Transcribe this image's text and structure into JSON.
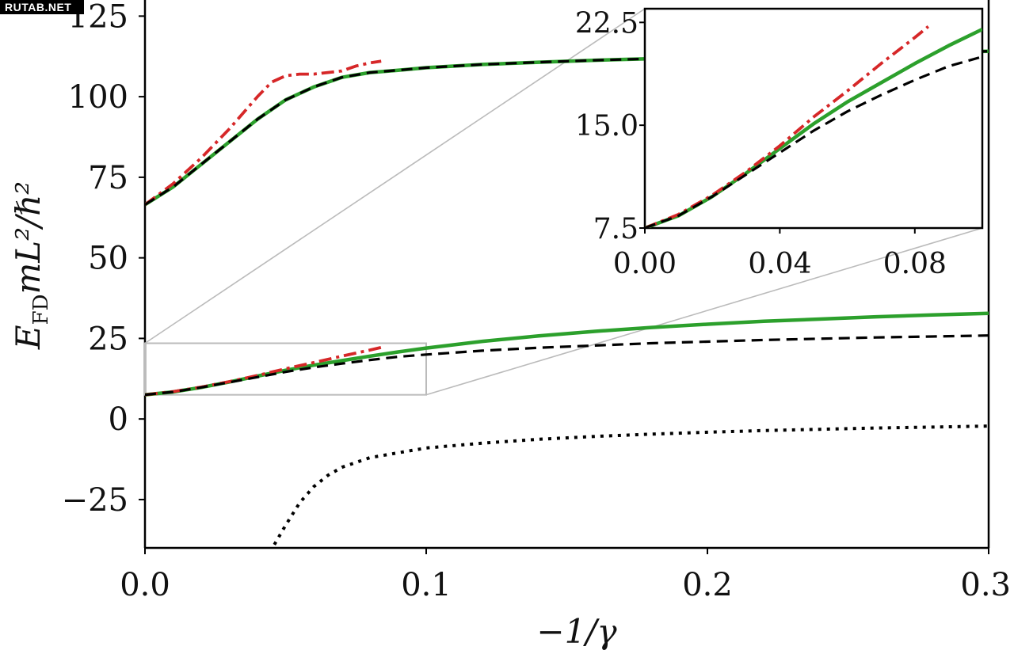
{
  "watermark": "RUTAB.NET",
  "chart_data": {
    "type": "line",
    "xlabel": "−1/γ",
    "ylabel": {
      "base": "E",
      "sub": "FD",
      "rest": "mL²/ℏ²"
    },
    "xlim": [
      0.0,
      0.3
    ],
    "ylim": [
      -40,
      130
    ],
    "x_ticks": [
      0.0,
      0.1,
      0.2,
      0.3
    ],
    "x_tick_labels": [
      "0.0",
      "0.1",
      "0.2",
      "0.3"
    ],
    "y_ticks": [
      -25,
      0,
      25,
      50,
      75,
      100,
      125
    ],
    "y_tick_labels": [
      "−25",
      "0",
      "25",
      "50",
      "75",
      "100",
      "125"
    ],
    "grid": false,
    "colors": {
      "green": "#2ca02c",
      "black": "#000000",
      "red": "#d62728",
      "zoom": "#bbbbbb"
    },
    "series": [
      {
        "style": "green-solid",
        "x": [
          0.0,
          0.01,
          0.02,
          0.03,
          0.04,
          0.05,
          0.06,
          0.07,
          0.08,
          0.09,
          0.1,
          0.12,
          0.14,
          0.16,
          0.18,
          0.2,
          0.22,
          0.24,
          0.26,
          0.28,
          0.3
        ],
        "y": [
          66.5,
          72,
          79,
          86,
          93,
          99,
          103,
          106,
          107.5,
          108.2,
          109,
          110,
          110.7,
          111.3,
          111.8,
          112.3,
          112.7,
          113.1,
          113.5,
          113.8,
          114.1
        ]
      },
      {
        "style": "black-dashed",
        "x": [
          0.0,
          0.01,
          0.02,
          0.03,
          0.04,
          0.05,
          0.06,
          0.07,
          0.08,
          0.09,
          0.1,
          0.12,
          0.14,
          0.16,
          0.18,
          0.2,
          0.22,
          0.24,
          0.26,
          0.28,
          0.3
        ],
        "y": [
          66.5,
          72,
          79,
          86,
          93,
          99,
          103,
          106,
          107.5,
          108.2,
          109,
          110,
          110.7,
          111.3,
          111.8,
          112.3,
          112.7,
          113.1,
          113.5,
          113.8,
          114.1
        ]
      },
      {
        "style": "red-dashdot",
        "x": [
          0.0,
          0.01,
          0.02,
          0.03,
          0.04,
          0.045,
          0.05,
          0.055,
          0.06,
          0.065,
          0.07,
          0.075,
          0.08,
          0.084
        ],
        "y": [
          66.5,
          73,
          81,
          90,
          100,
          104.5,
          106.5,
          107,
          107,
          107.5,
          108,
          109.5,
          110.5,
          111
        ]
      },
      {
        "style": "green-solid",
        "x": [
          0.0,
          0.01,
          0.02,
          0.03,
          0.04,
          0.05,
          0.06,
          0.07,
          0.08,
          0.09,
          0.1,
          0.12,
          0.14,
          0.16,
          0.18,
          0.2,
          0.22,
          0.24,
          0.26,
          0.28,
          0.3
        ],
        "y": [
          7.5,
          8.4,
          9.8,
          11.5,
          13.3,
          15.1,
          16.7,
          18.1,
          19.5,
          20.8,
          22,
          24.1,
          25.8,
          27.2,
          28.4,
          29.4,
          30.3,
          31,
          31.7,
          32.3,
          32.8
        ]
      },
      {
        "style": "black-dashed",
        "x": [
          0.0,
          0.01,
          0.02,
          0.03,
          0.04,
          0.05,
          0.06,
          0.07,
          0.08,
          0.09,
          0.1,
          0.12,
          0.14,
          0.16,
          0.18,
          0.2,
          0.22,
          0.24,
          0.26,
          0.28,
          0.3
        ],
        "y": [
          7.5,
          8.4,
          9.8,
          11.4,
          13,
          14.6,
          16,
          17.2,
          18.3,
          19.3,
          20,
          21.2,
          22.1,
          22.8,
          23.5,
          24,
          24.5,
          24.9,
          25.3,
          25.6,
          25.9
        ]
      },
      {
        "style": "red-dashdot",
        "x": [
          0.0,
          0.01,
          0.02,
          0.03,
          0.04,
          0.05,
          0.06,
          0.07,
          0.08,
          0.084
        ],
        "y": [
          7.5,
          8.5,
          9.9,
          11.6,
          13.5,
          15.6,
          17.5,
          19.5,
          21.4,
          22.2
        ]
      },
      {
        "style": "black-dotted",
        "x": [
          0.046,
          0.05,
          0.055,
          0.06,
          0.065,
          0.07,
          0.08,
          0.09,
          0.1,
          0.12,
          0.14,
          0.16,
          0.18,
          0.2,
          0.22,
          0.24,
          0.26,
          0.28,
          0.3
        ],
        "y": [
          -39,
          -33,
          -26,
          -21,
          -17.5,
          -15,
          -12,
          -10.5,
          -9,
          -7.5,
          -6.3,
          -5.4,
          -4.7,
          -4.1,
          -3.6,
          -3.2,
          -2.8,
          -2.5,
          -2.2
        ]
      }
    ],
    "zoom_box": {
      "xlim": [
        0.0,
        0.1
      ],
      "ylim": [
        7.5,
        23.5
      ]
    },
    "inset": {
      "xlim": [
        0.0,
        0.1
      ],
      "ylim": [
        7.5,
        23.5
      ],
      "x_ticks": [
        0.0,
        0.04,
        0.08
      ],
      "x_tick_labels": [
        "0.00",
        "0.04",
        "0.08"
      ],
      "y_ticks": [
        7.5,
        15.0,
        22.5
      ],
      "y_tick_labels": [
        "7.5",
        "15.0",
        "22.5"
      ],
      "series": [
        {
          "style": "green-solid",
          "x": [
            0.0,
            0.01,
            0.02,
            0.03,
            0.04,
            0.05,
            0.06,
            0.07,
            0.08,
            0.09,
            0.1
          ],
          "y": [
            7.5,
            8.4,
            9.8,
            11.5,
            13.3,
            15.1,
            16.7,
            18.1,
            19.5,
            20.8,
            22
          ]
        },
        {
          "style": "black-dashed",
          "x": [
            0.0,
            0.01,
            0.02,
            0.03,
            0.04,
            0.05,
            0.06,
            0.07,
            0.08,
            0.09,
            0.1
          ],
          "y": [
            7.5,
            8.4,
            9.8,
            11.4,
            13,
            14.6,
            16,
            17.2,
            18.3,
            19.3,
            20
          ]
        },
        {
          "style": "red-dashdot",
          "x": [
            0.0,
            0.01,
            0.02,
            0.03,
            0.04,
            0.05,
            0.06,
            0.07,
            0.08,
            0.084
          ],
          "y": [
            7.5,
            8.5,
            9.9,
            11.6,
            13.5,
            15.6,
            17.5,
            19.5,
            21.4,
            22.2
          ]
        }
      ]
    }
  }
}
